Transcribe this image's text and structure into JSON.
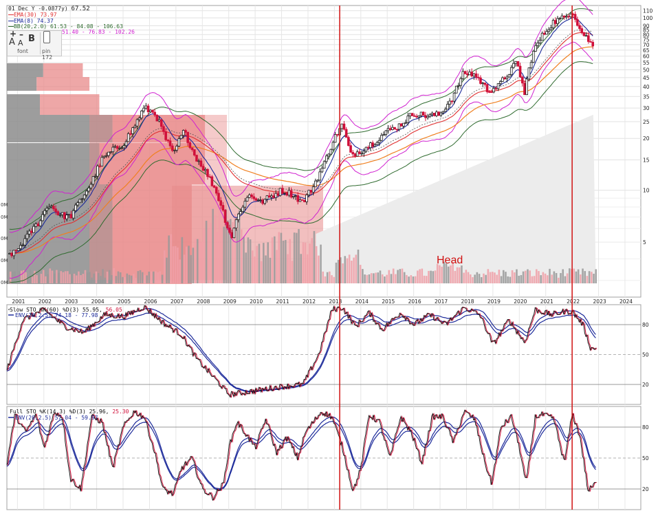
{
  "header": {
    "line1": {
      "sym": "01 Dec Y -0.0877y)",
      "price": "67.52"
    },
    "ema30": "EMA(30) 73.97",
    "ema8": "EMA(8) 74.37",
    "bb": "BB(20,2.0) 61.53 - 84.08 - 106.63",
    "env": "51.40 - 76.83 - 102.26"
  },
  "toolbox": {
    "plus": "+",
    "minus": "–",
    "font_big": "A",
    "font_small": "A",
    "bold": "B",
    "font_label": "font",
    "pin_label": "pin",
    "pin_value": "172"
  },
  "colors": {
    "price_up": "#1a1a1a",
    "price_down": "#d0103a",
    "ema30": "#e03030",
    "ema8": "#1c2a9a",
    "bb": "#2f6b2f",
    "env": "#d020d0",
    "ma_orange": "#f08020",
    "volume_up": "#999999",
    "volume_down": "#f0a0a8",
    "vbp_up": "#8c8c8c",
    "vbp_down": "#e88a8a",
    "stoch_k": "#1a1a1a",
    "stoch_d": "#d0103a",
    "stoch_env": "#1c2a9a",
    "vline": "#d01010"
  },
  "annotation": {
    "text": "Head"
  },
  "chart_data": [
    {
      "type": "line",
      "panel": "price",
      "scale": "log",
      "ylim": [
        2.4,
        118
      ],
      "y_ticks": [
        110,
        100,
        90,
        80,
        70,
        60,
        50,
        40,
        30,
        25,
        20,
        15,
        10,
        5
      ],
      "y_tick_labels": [
        "110",
        "100",
        "90",
        "85",
        "80",
        "75",
        "70",
        "65",
        "60",
        "55",
        "50",
        "45",
        "40",
        "35",
        "30",
        "25",
        "20",
        "15",
        "10",
        "5"
      ],
      "y_tick_values": [
        110,
        100,
        90,
        85,
        80,
        75,
        70,
        65,
        60,
        55,
        50,
        45,
        40,
        35,
        30,
        25,
        20,
        15,
        10,
        5
      ],
      "x_range": [
        2000.6,
        2024.6
      ],
      "x_tick_labels": [
        "2001",
        "2002",
        "2003",
        "2004",
        "2005",
        "2006",
        "2007",
        "2008",
        "2009",
        "2010",
        "2011",
        "2012",
        "2013",
        "2014",
        "2015",
        "2016",
        "2017",
        "2018",
        "2019",
        "2020",
        "2021",
        "2022",
        "2023",
        "2024"
      ],
      "x_tick_values": [
        2001,
        2002,
        2003,
        2004,
        2005,
        2006,
        2007,
        2008,
        2009,
        2010,
        2011,
        2012,
        2013,
        2014,
        2015,
        2016,
        2017,
        2018,
        2019,
        2020,
        2021,
        2022,
        2023,
        2024
      ],
      "volume_axis_labels": [
        "0M",
        "0M",
        "0M",
        "0M",
        "0M"
      ],
      "price_anchors": [
        [
          2000.9,
          4.3
        ],
        [
          2001.3,
          5.2
        ],
        [
          2001.8,
          6.5
        ],
        [
          2002.2,
          8.3
        ],
        [
          2002.6,
          7.2
        ],
        [
          2003.0,
          7.0
        ],
        [
          2003.4,
          8.8
        ],
        [
          2003.8,
          11.0
        ],
        [
          2004.2,
          15.0
        ],
        [
          2004.6,
          17.0
        ],
        [
          2005.0,
          18.5
        ],
        [
          2005.4,
          23.0
        ],
        [
          2005.8,
          30.0
        ],
        [
          2006.2,
          28.0
        ],
        [
          2006.6,
          20.0
        ],
        [
          2006.9,
          16.0
        ],
        [
          2007.3,
          22.0
        ],
        [
          2007.7,
          16.0
        ],
        [
          2008.1,
          13.0
        ],
        [
          2008.5,
          10.0
        ],
        [
          2008.9,
          6.5
        ],
        [
          2009.1,
          5.3
        ],
        [
          2009.4,
          7.5
        ],
        [
          2009.8,
          9.5
        ],
        [
          2010.2,
          8.5
        ],
        [
          2010.6,
          9.2
        ],
        [
          2011.0,
          10.0
        ],
        [
          2011.4,
          9.5
        ],
        [
          2011.8,
          8.5
        ],
        [
          2012.2,
          10.5
        ],
        [
          2012.6,
          14.0
        ],
        [
          2013.0,
          20.0
        ],
        [
          2013.3,
          24.0
        ],
        [
          2013.6,
          16.0
        ],
        [
          2014.0,
          17.0
        ],
        [
          2014.5,
          19.0
        ],
        [
          2015.0,
          22.0
        ],
        [
          2015.5,
          24.0
        ],
        [
          2016.0,
          28.0
        ],
        [
          2016.5,
          27.0
        ],
        [
          2017.0,
          27.5
        ],
        [
          2017.5,
          35.0
        ],
        [
          2017.9,
          48.0
        ],
        [
          2018.3,
          47.0
        ],
        [
          2018.8,
          38.0
        ],
        [
          2019.2,
          40.0
        ],
        [
          2019.6,
          48.0
        ],
        [
          2019.9,
          55.0
        ],
        [
          2020.2,
          36.0
        ],
        [
          2020.5,
          62.0
        ],
        [
          2020.9,
          80.0
        ],
        [
          2021.3,
          95.0
        ],
        [
          2021.7,
          100.0
        ],
        [
          2022.0,
          111.0
        ],
        [
          2022.3,
          85.0
        ],
        [
          2022.6,
          75.0
        ],
        [
          2022.8,
          67.5
        ]
      ],
      "annotations": [
        "Head"
      ],
      "vertical_lines": [
        2013.2,
        2022.0
      ],
      "grid": true
    },
    {
      "type": "line",
      "panel": "slow_stochastic",
      "title": "Slow STO %K(60) %D(3) 55.95, 56.05",
      "title_main": "Slow STO %K(60) %D(3) 55.95,",
      "title_last": "56.05",
      "series_labels": [
        "ENV(20,2.5) 74.18 - 77.98"
      ],
      "ylim": [
        0,
        100
      ],
      "y_tick_labels": [
        "80",
        "50",
        "20"
      ],
      "y_tick_values": [
        80,
        50,
        20
      ],
      "k_anchors": [
        [
          2000.6,
          35
        ],
        [
          2001.2,
          85
        ],
        [
          2002.0,
          95
        ],
        [
          2002.8,
          78
        ],
        [
          2003.5,
          72
        ],
        [
          2004.3,
          90
        ],
        [
          2005.0,
          88
        ],
        [
          2005.8,
          98
        ],
        [
          2006.6,
          80
        ],
        [
          2007.2,
          70
        ],
        [
          2007.8,
          45
        ],
        [
          2008.5,
          25
        ],
        [
          2009.0,
          10
        ],
        [
          2009.6,
          12
        ],
        [
          2010.3,
          15
        ],
        [
          2011.0,
          18
        ],
        [
          2011.8,
          20
        ],
        [
          2012.4,
          50
        ],
        [
          2012.9,
          95
        ],
        [
          2013.3,
          97
        ],
        [
          2013.8,
          78
        ],
        [
          2014.3,
          92
        ],
        [
          2014.8,
          75
        ],
        [
          2015.5,
          92
        ],
        [
          2016.0,
          80
        ],
        [
          2016.6,
          90
        ],
        [
          2017.2,
          80
        ],
        [
          2017.9,
          97
        ],
        [
          2018.5,
          90
        ],
        [
          2019.0,
          60
        ],
        [
          2019.6,
          85
        ],
        [
          2020.2,
          62
        ],
        [
          2020.6,
          95
        ],
        [
          2021.2,
          90
        ],
        [
          2021.7,
          93
        ],
        [
          2022.0,
          93
        ],
        [
          2022.4,
          80
        ],
        [
          2022.7,
          56
        ],
        [
          2022.9,
          56
        ]
      ],
      "grid": true
    },
    {
      "type": "line",
      "panel": "full_stochastic",
      "title": "Full STO %K(14,3) %D(3) 25.96, 25.30",
      "title_main": "Full STO %K(14,3) %D(3) 25.96,",
      "title_last": "25.30",
      "series_labels": [
        "ENV(20,2.5) 57.04 - 59.97"
      ],
      "ylim": [
        0,
        100
      ],
      "y_tick_labels": [
        "80",
        "50",
        "20"
      ],
      "y_tick_values": [
        80,
        50,
        20
      ],
      "k_anchors": [
        [
          2000.6,
          45
        ],
        [
          2000.9,
          92
        ],
        [
          2001.3,
          75
        ],
        [
          2001.7,
          92
        ],
        [
          2002.0,
          60
        ],
        [
          2002.4,
          95
        ],
        [
          2002.7,
          90
        ],
        [
          2003.0,
          30
        ],
        [
          2003.4,
          20
        ],
        [
          2003.8,
          90
        ],
        [
          2004.2,
          85
        ],
        [
          2004.6,
          40
        ],
        [
          2005.0,
          80
        ],
        [
          2005.4,
          95
        ],
        [
          2005.8,
          90
        ],
        [
          2006.2,
          55
        ],
        [
          2006.5,
          20
        ],
        [
          2006.9,
          15
        ],
        [
          2007.2,
          40
        ],
        [
          2007.6,
          50
        ],
        [
          2008.0,
          20
        ],
        [
          2008.4,
          12
        ],
        [
          2008.8,
          25
        ],
        [
          2009.0,
          60
        ],
        [
          2009.3,
          85
        ],
        [
          2009.6,
          75
        ],
        [
          2010.0,
          60
        ],
        [
          2010.4,
          88
        ],
        [
          2010.8,
          55
        ],
        [
          2011.2,
          70
        ],
        [
          2011.6,
          50
        ],
        [
          2011.9,
          75
        ],
        [
          2012.2,
          85
        ],
        [
          2012.5,
          95
        ],
        [
          2012.9,
          90
        ],
        [
          2013.3,
          60
        ],
        [
          2013.7,
          18
        ],
        [
          2014.0,
          40
        ],
        [
          2014.3,
          92
        ],
        [
          2014.7,
          85
        ],
        [
          2015.1,
          50
        ],
        [
          2015.5,
          90
        ],
        [
          2015.9,
          75
        ],
        [
          2016.3,
          45
        ],
        [
          2016.7,
          90
        ],
        [
          2017.1,
          90
        ],
        [
          2017.5,
          65
        ],
        [
          2017.9,
          95
        ],
        [
          2018.3,
          88
        ],
        [
          2018.7,
          45
        ],
        [
          2018.95,
          25
        ],
        [
          2019.3,
          80
        ],
        [
          2019.7,
          90
        ],
        [
          2020.0,
          60
        ],
        [
          2020.25,
          25
        ],
        [
          2020.6,
          90
        ],
        [
          2020.9,
          92
        ],
        [
          2021.3,
          88
        ],
        [
          2021.7,
          45
        ],
        [
          2022.0,
          93
        ],
        [
          2022.3,
          70
        ],
        [
          2022.6,
          18
        ],
        [
          2022.9,
          26
        ]
      ],
      "grid": true
    }
  ]
}
